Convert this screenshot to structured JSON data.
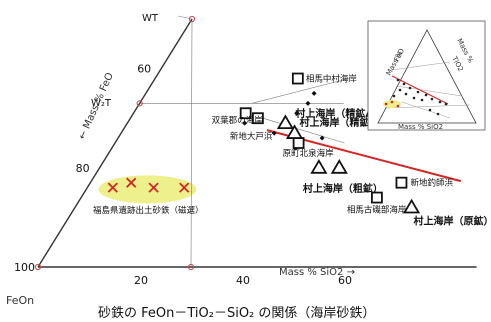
{
  "chart_data": {
    "type": "scatter",
    "caption": "砂鉄の FeOn－TiO₂－SiO₂ の関係（海岸砂鉄）",
    "axis_label_feo": "←  Mass %  FeO",
    "axis_label_sio2": "Mass %  SiO2  →",
    "corner_feon": "FeOn",
    "vertex_wt": "WT",
    "point_w2t": "W₂T",
    "feo_ticks": [
      "60",
      "80",
      "100"
    ],
    "sio2_ticks": [
      "20",
      "40",
      "60"
    ],
    "region_label": "福島県遺跡出土砂鉄（磁選）",
    "trend_line": {
      "from": {
        "feo": 72,
        "sio2": 28
      },
      "to": {
        "feo": 72,
        "sio2": 66
      }
    },
    "samples": [
      {
        "label": "相馬中村海岸",
        "marker": "square",
        "feo": 62,
        "sio2": 28,
        "dx": 8,
        "dy": 3
      },
      {
        "label": "双葉郡の海岸",
        "marker": "square",
        "feo": 69,
        "sio2": 22,
        "dx": -34,
        "dy": 10
      },
      {
        "label": "新地大戸浜",
        "marker": "square",
        "feo": 70,
        "sio2": 25,
        "dx": -28,
        "dy": 21
      },
      {
        "label": "原町北泉海岸",
        "marker": "square",
        "feo": 75,
        "sio2": 36,
        "dx": -16,
        "dy": 13
      },
      {
        "label": "新地釣師浜",
        "marker": "square",
        "feo": 83,
        "sio2": 61,
        "dx": 9,
        "dy": 3
      },
      {
        "label": "相馬古磯部海岸",
        "marker": "square",
        "feo": 86,
        "sio2": 58,
        "dx": -30,
        "dy": 15
      },
      {
        "label": "村上海岸（精鉱A）",
        "marker": "triangle",
        "feo": 71,
        "sio2": 31,
        "dx": 10,
        "dy": -6
      },
      {
        "label": "村上海岸（精鉱B）",
        "marker": "triangle",
        "feo": 73,
        "sio2": 34,
        "dx": 5,
        "dy": -7
      },
      {
        "label": "村上海岸（粗鉱）",
        "marker": "triangle",
        "feo": 80,
        "sio2": 43,
        "dx": -16,
        "dy": 24
      },
      {
        "label": "",
        "marker": "triangle",
        "feo": 80,
        "sio2": 47
      },
      {
        "label": "村上海岸（原鉱）",
        "marker": "triangle",
        "feo": 88,
        "sio2": 66,
        "dx": 2,
        "dy": 17
      }
    ],
    "cross_points": [
      {
        "feo": 84,
        "sio2": 5
      },
      {
        "feo": 83,
        "sio2": 8
      },
      {
        "feo": 84,
        "sio2": 13
      },
      {
        "feo": 84,
        "sio2": 19
      }
    ],
    "diamond_points": [
      {
        "feo": 65,
        "sio2": 33
      },
      {
        "feo": 67,
        "sio2": 33
      },
      {
        "feo": 69,
        "sio2": 32
      },
      {
        "feo": 71,
        "sio2": 23
      },
      {
        "feo": 73,
        "sio2": 30
      },
      {
        "feo": 74,
        "sio2": 40
      },
      {
        "feo": 76,
        "sio2": 36
      }
    ],
    "colors": {
      "trend_line": "#d42626",
      "region_fill": "#eef08c",
      "cross": "#d42626",
      "tick_dot": "#c44a4a",
      "axis": "#333333",
      "guide": "#777777"
    }
  },
  "inset": {
    "label_feo": "FeO",
    "label_mass_left": "Mass %",
    "label_tio2": "TiO2",
    "label_mass_right": "Mass %",
    "label_bottom": "Mass %  SiO2"
  }
}
